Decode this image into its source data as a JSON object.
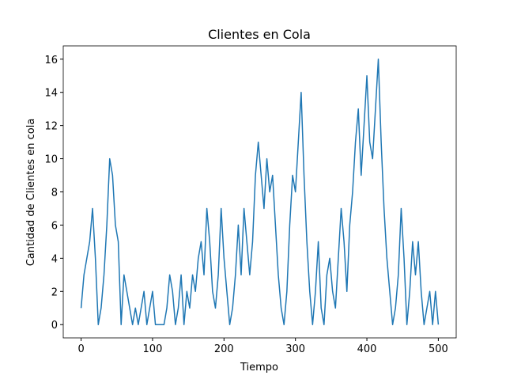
{
  "chart_data": {
    "type": "line",
    "title": "Clientes en Cola",
    "x_label": "Tiempo",
    "y_label": "Cantidad de Clientes en cola",
    "x": [
      0,
      4,
      8,
      12,
      16,
      20,
      24,
      28,
      32,
      36,
      40,
      44,
      48,
      52,
      56,
      60,
      64,
      68,
      72,
      76,
      80,
      84,
      88,
      92,
      96,
      100,
      104,
      108,
      112,
      116,
      120,
      124,
      128,
      132,
      136,
      140,
      144,
      148,
      152,
      156,
      160,
      164,
      168,
      172,
      176,
      180,
      184,
      188,
      192,
      196,
      200,
      204,
      208,
      212,
      216,
      220,
      224,
      228,
      232,
      236,
      240,
      244,
      248,
      252,
      256,
      260,
      264,
      268,
      272,
      276,
      280,
      284,
      288,
      292,
      296,
      300,
      304,
      308,
      312,
      316,
      320,
      324,
      328,
      332,
      336,
      340,
      344,
      348,
      352,
      356,
      360,
      364,
      368,
      372,
      376,
      380,
      384,
      388,
      392,
      396,
      400,
      404,
      408,
      412,
      416,
      420,
      424,
      428,
      432,
      436,
      440,
      444,
      448,
      452,
      456,
      460,
      464,
      468,
      472,
      476,
      480,
      484,
      488,
      492,
      496,
      500
    ],
    "series": [
      {
        "color": "#1f77b4",
        "values": [
          1,
          3,
          4,
          5,
          7,
          4,
          0,
          1,
          3,
          6,
          10,
          9,
          6,
          5,
          0,
          3,
          2,
          1,
          0,
          1,
          0,
          1,
          2,
          0,
          1,
          2,
          0,
          0,
          0,
          0,
          1,
          3,
          2,
          0,
          1,
          3,
          0,
          2,
          1,
          3,
          2,
          4,
          5,
          3,
          7,
          5,
          2,
          1,
          3,
          7,
          4,
          2,
          0,
          1,
          3,
          6,
          3,
          7,
          5,
          3,
          5,
          9,
          11,
          9,
          7,
          10,
          8,
          9,
          6,
          3,
          1,
          0,
          2,
          6,
          9,
          8,
          11,
          14,
          9,
          5,
          2,
          0,
          2,
          5,
          1,
          0,
          3,
          4,
          2,
          1,
          4,
          7,
          5,
          2,
          6,
          8,
          11,
          13,
          9,
          12,
          15,
          11,
          10,
          13,
          16,
          11,
          7,
          4,
          2,
          0,
          1,
          3,
          7,
          4,
          0,
          2,
          5,
          3,
          5,
          2,
          0,
          1,
          2,
          0,
          2,
          0
        ]
      }
    ],
    "xlim": [
      -25,
      525
    ],
    "ylim": [
      -0.8,
      16.8
    ],
    "xticks": [
      0,
      100,
      200,
      300,
      400,
      500
    ],
    "yticks": [
      0,
      2,
      4,
      6,
      8,
      10,
      12,
      14,
      16
    ]
  }
}
